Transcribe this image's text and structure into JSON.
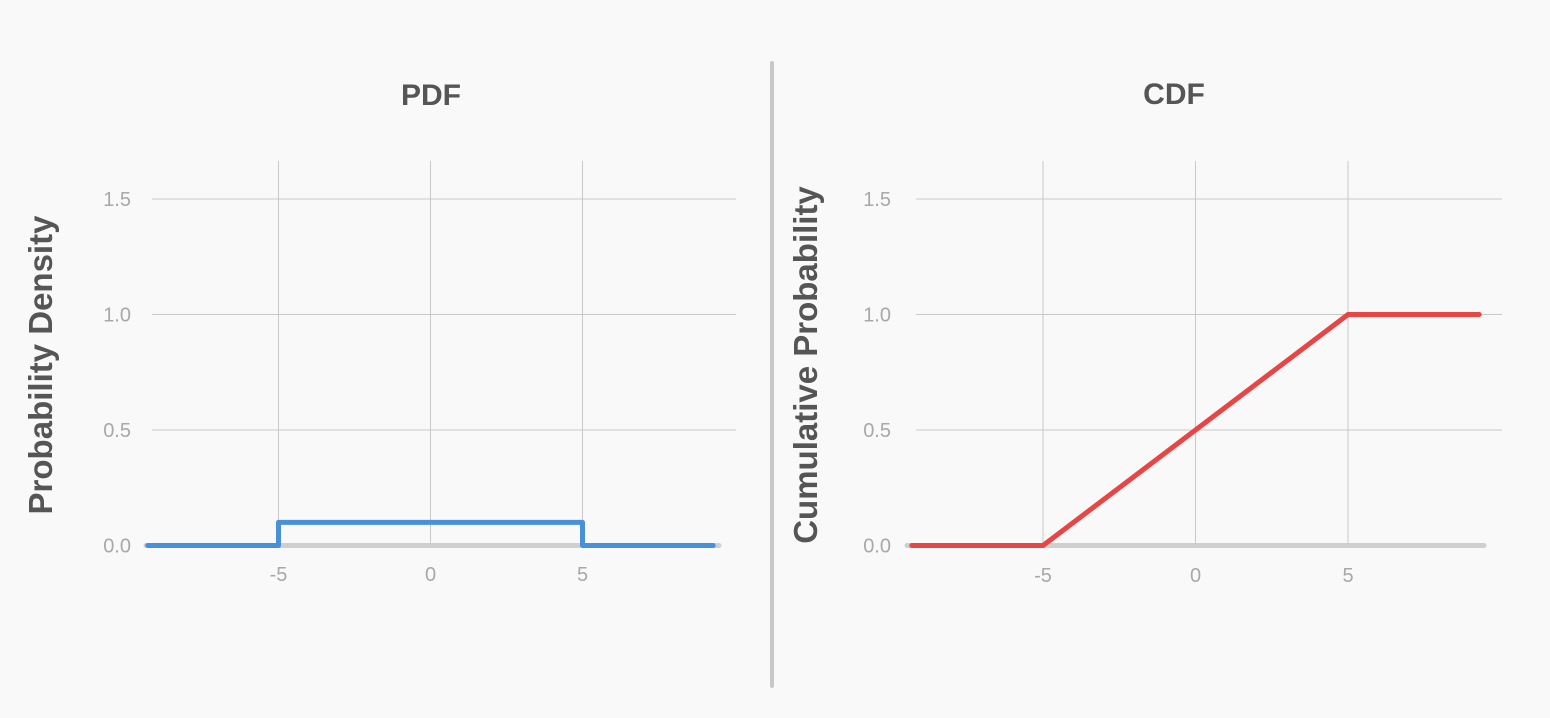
{
  "chart_data": [
    {
      "type": "line",
      "title": "PDF",
      "xlabel": "",
      "ylabel": "Probability Density",
      "xlim": [
        -9.3,
        9.3
      ],
      "ylim": [
        0,
        1.5
      ],
      "x_ticks": [
        -5,
        0,
        5
      ],
      "x_tick_labels": [
        "-5",
        "0",
        "5"
      ],
      "y_ticks": [
        0,
        0.5,
        1.0,
        1.5
      ],
      "y_tick_labels": [
        "0.0",
        "0.5",
        "1.0",
        "1.5"
      ],
      "grid": true,
      "color": "#4a90d9",
      "series": [
        {
          "x": [
            -9.3,
            -5,
            -5,
            5,
            5,
            9.3
          ],
          "y": [
            0,
            0,
            0.1,
            0.1,
            0,
            0
          ]
        }
      ]
    },
    {
      "type": "line",
      "title": "CDF",
      "xlabel": "",
      "ylabel": "Cumulative Probability",
      "xlim": [
        -9.3,
        9.3
      ],
      "ylim": [
        0,
        1.5
      ],
      "x_ticks": [
        -5,
        0,
        5
      ],
      "x_tick_labels": [
        "-5",
        "0",
        "5"
      ],
      "y_ticks": [
        0,
        0.5,
        1.0,
        1.5
      ],
      "y_tick_labels": [
        "0.0",
        "0.5",
        "1.0",
        "1.5"
      ],
      "grid": true,
      "color": "#e84545",
      "series": [
        {
          "x": [
            -9.3,
            -5,
            5,
            9.3
          ],
          "y": [
            0,
            0,
            1,
            1
          ]
        }
      ]
    }
  ]
}
